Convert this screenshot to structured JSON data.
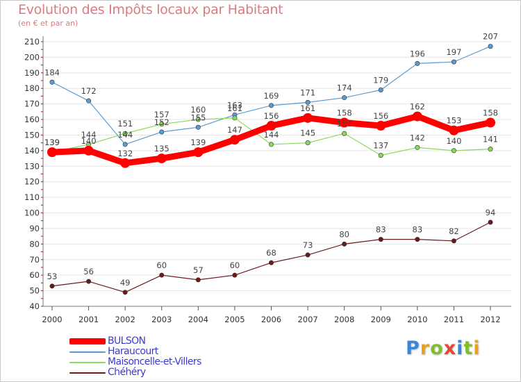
{
  "header": {
    "title": "Evolution des Impôts locaux par Habitant",
    "subtitle": "(en € et par an)"
  },
  "brand": {
    "logo_text": "Proxiti",
    "letter_colors": [
      "#3a86d8",
      "#e8a21b",
      "#7fbf2f",
      "#e04a3a",
      "#3a86d8",
      "#7fbf2f",
      "#e8a21b"
    ]
  },
  "chart_data": {
    "type": "line",
    "title": "Evolution des Impôts locaux par Habitant",
    "subtitle": "(en € et par an)",
    "xlabel": "",
    "ylabel": "",
    "x": [
      "2000",
      "2001",
      "2002",
      "2003",
      "2004",
      "2005",
      "2006",
      "2007",
      "2008",
      "2009",
      "2010",
      "2011",
      "2012"
    ],
    "ylim": [
      40,
      210
    ],
    "yticks": [
      40,
      50,
      60,
      70,
      80,
      90,
      100,
      110,
      120,
      130,
      140,
      150,
      160,
      170,
      180,
      190,
      200,
      210
    ],
    "grid": "horizontal",
    "legend_position": "bottom-left",
    "series": [
      {
        "name": "BULSON",
        "color": "#ff0000",
        "emphasis": "thick",
        "values": [
          139,
          140,
          132,
          135,
          139,
          147,
          156,
          161,
          158,
          156,
          162,
          153,
          158
        ]
      },
      {
        "name": "Haraucourt",
        "color": "#5a9bd5",
        "values": [
          184,
          172,
          144,
          152,
          155,
          163,
          169,
          171,
          174,
          179,
          196,
          197,
          207
        ]
      },
      {
        "name": "Maisoncelle-et-Villers",
        "color": "#8cd85a",
        "values": [
          139,
          144,
          151,
          157,
          160,
          161,
          144,
          145,
          151,
          137,
          142,
          140,
          141
        ]
      },
      {
        "name": "Chéhéry",
        "color": "#6b1a1a",
        "values": [
          53,
          56,
          49,
          60,
          57,
          60,
          68,
          73,
          80,
          83,
          83,
          82,
          94
        ]
      }
    ]
  }
}
